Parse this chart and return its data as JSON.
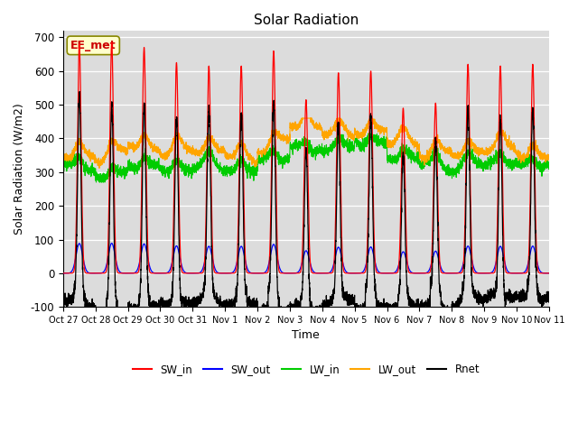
{
  "title": "Solar Radiation",
  "ylabel": "Solar Radiation (W/m2)",
  "xlabel": "Time",
  "ylim": [
    -100,
    720
  ],
  "yticks": [
    -100,
    0,
    100,
    200,
    300,
    400,
    500,
    600,
    700
  ],
  "xtick_labels": [
    "Oct 27",
    "Oct 28",
    "Oct 29",
    "Oct 30",
    "Oct 31",
    "Nov 1",
    "Nov 2",
    "Nov 3",
    "Nov 4",
    "Nov 5",
    "Nov 6",
    "Nov 7",
    "Nov 8",
    "Nov 9",
    "Nov 10",
    "Nov 11"
  ],
  "annotation_text": "EE_met",
  "colors": {
    "SW_in": "#ff0000",
    "SW_out": "#0000ff",
    "LW_in": "#00cc00",
    "LW_out": "#ffa500",
    "Rnet": "#000000"
  },
  "bg_color": "#dcdcdc",
  "n_days": 15,
  "sw_in_peaks": [
    680,
    685,
    670,
    625,
    615,
    615,
    660,
    515,
    595,
    600,
    490,
    505,
    620,
    615,
    620
  ],
  "lw_base_green": [
    310,
    295,
    315,
    305,
    310,
    310,
    340,
    370,
    360,
    380,
    340,
    325,
    320,
    320,
    315
  ],
  "lw_base_orange": [
    350,
    340,
    365,
    350,
    355,
    345,
    380,
    420,
    400,
    420,
    380,
    355,
    350,
    350,
    345
  ],
  "night_rnet": [
    -55,
    -85,
    -55,
    -45,
    -45,
    -50,
    -70,
    -55,
    -55,
    -70,
    -60,
    -65,
    -50,
    -45,
    -50
  ]
}
